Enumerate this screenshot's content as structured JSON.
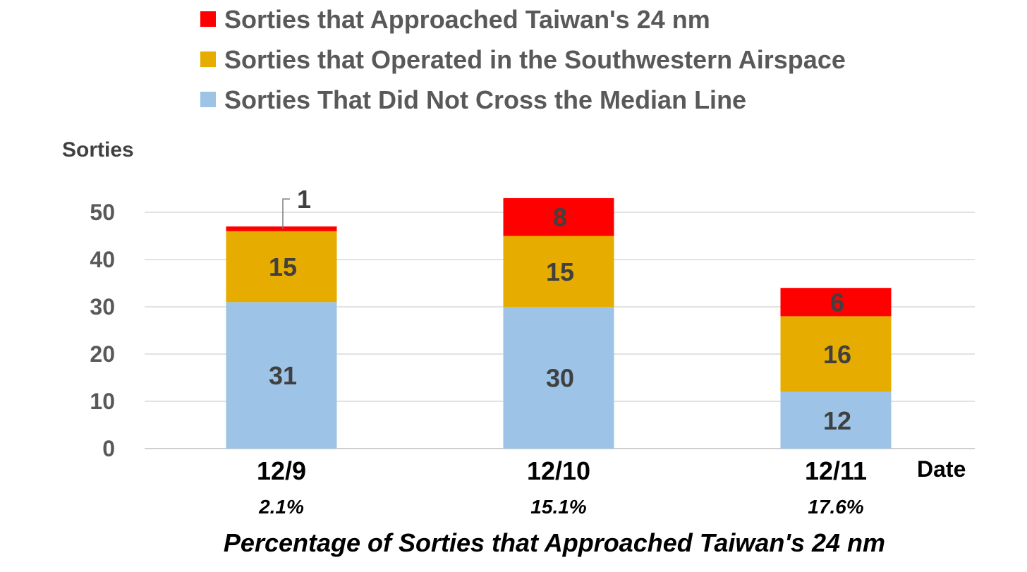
{
  "chart_data": {
    "type": "bar",
    "stacked": true,
    "categories": [
      "12/9",
      "12/10",
      "12/11"
    ],
    "series": [
      {
        "name": "Sorties That Did Not Cross the Median Line",
        "values": [
          31,
          30,
          12
        ],
        "color": "#9dc3e6"
      },
      {
        "name": "Sorties that Operated in the Southwestern Airspace",
        "values": [
          15,
          15,
          16
        ],
        "color": "#e6ac00"
      },
      {
        "name": "Sorties that Approached Taiwan's 24 nm",
        "values": [
          1,
          8,
          6
        ],
        "color": "#ff0000"
      }
    ],
    "percentages": [
      "2.1%",
      "15.1%",
      "17.6%"
    ],
    "ylabel": "Sorties",
    "xlabel": "Date",
    "footer_title": "Percentage of Sorties that Approached Taiwan's 24 nm",
    "ylim": [
      0,
      50
    ],
    "yticks": [
      0,
      10,
      20,
      30,
      40,
      50
    ],
    "grid": true,
    "legend_position": "top"
  }
}
